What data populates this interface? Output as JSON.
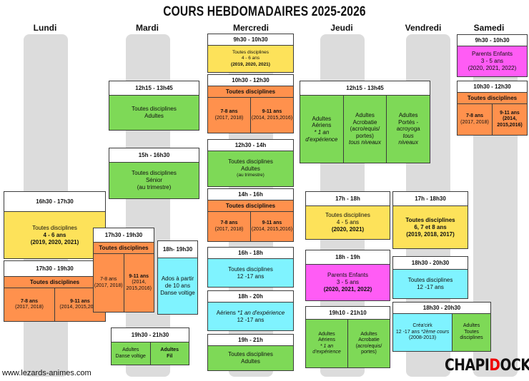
{
  "title": "COURS HEBDOMADAIRES 2025-2026",
  "days": [
    "Lundi",
    "Mardi",
    "Mercredi",
    "Jeudi",
    "Vendredi",
    "Samedi"
  ],
  "website": "www.lezards-animes.com",
  "logo": {
    "text_before": "CHAPI",
    "text_accent": "D",
    "text_after": "OCK"
  },
  "colors": {
    "yellow": "#fde25a",
    "green": "#7ed957",
    "orange": "#ff914d",
    "cyan": "#7ff3ff",
    "magenta": "#ff5cf5",
    "track": "#dcdcdc"
  },
  "lundi": {
    "c1": {
      "time": "16h30 - 17h30",
      "l1": "Toutes disciplines",
      "l2": "4 - 6 ans",
      "l3": "(2019, 2020, 2021)"
    },
    "c2": {
      "time": "17h30 - 19h30",
      "sub": "Toutes disciplines",
      "a1": "7-8 ans",
      "a2": "(2017, 2018)",
      "b1": "9-11 ans",
      "b2": "(2014, 2015,2016)"
    }
  },
  "mardi": {
    "c1": {
      "time": "12h15 - 13h45",
      "l1": "Toutes disciplines",
      "l2": "Adultes"
    },
    "c2": {
      "time": "15h - 16h30",
      "l1": "Toutes disciplines",
      "l2": "Sénior",
      "l3": "(au trimestre)"
    },
    "c3": {
      "time": "17h30 - 19h30",
      "sub": "Toutes disciplines",
      "a1": "7-8 ans",
      "a2": "(2017, 2018)",
      "b1": "9-11 ans",
      "b2": "(2014, 2015,2016)"
    },
    "c4": {
      "time": "18h- 19h30",
      "l1": "Ados à partir",
      "l2": "de 10 ans",
      "l3": "Danse voltige"
    },
    "c5": {
      "time": "19h30 - 21h30",
      "a1": "Adultes",
      "a2": "Danse voltige",
      "b1": "Adultes",
      "b2": "Fil"
    }
  },
  "mercredi": {
    "c1": {
      "time": "9h30 - 10h30",
      "l1": "Toutes disciplines",
      "l2": "4 - 6 ans",
      "l3": "(2019, 2020, 2021)"
    },
    "c2": {
      "time": "10h30 - 12h30",
      "sub": "Toutes disciplines",
      "a1": "7-8 ans",
      "a2": "(2017, 2018)",
      "b1": "9-11 ans",
      "b2": "(2014, 2015,2016)"
    },
    "c3": {
      "time": "12h30 - 14h",
      "l1": "Toutes disciplines",
      "l2": "Adultes",
      "l3": "(au trimestre)"
    },
    "c4": {
      "time": "14h - 16h",
      "sub": "Toutes disciplines",
      "a1": "7-8 ans",
      "a2": "(2017, 2018)",
      "b1": "9-11 ans",
      "b2": "(2014, 2015,2016)"
    },
    "c5": {
      "time": "16h - 18h",
      "l1": "Toutes disciplines",
      "l2": "12 -17 ans"
    },
    "c6": {
      "time": "18h - 20h",
      "l1a": "Aériens",
      "l1b": "*1 an d'expérience",
      "l2": "12 -17 ans"
    },
    "c7": {
      "time": "19h - 21h",
      "l1": "Toutes disciplines",
      "l2": "Adultes"
    }
  },
  "jeudi": {
    "c1": {
      "time": "12h15 - 13h45",
      "a1": "Adultes",
      "a2": "Aériens",
      "a3": "* 1 an",
      "a4": "d'expérience",
      "b1": "Adultes",
      "b2": "Acrobatie",
      "b3": "(acro/equis/",
      "b4": "portes)",
      "b5": "tous niveaux",
      "c1": "Adultes",
      "c2": "Portés -",
      "c3": "acroyoga",
      "c4": "tous",
      "c5": "niveaux"
    },
    "c2": {
      "time": "17h - 18h",
      "l1": "Toutes disciplines",
      "l2": "4 - 5 ans",
      "l3": "(2020, 2021)"
    },
    "c3": {
      "time": "18h - 19h",
      "l1": "Parents Enfants",
      "l2": "3 - 5 ans",
      "l3": "(2020, 2021, 2022)"
    },
    "c4": {
      "time": "19h10 - 21h10",
      "a1": "Adultes",
      "a2": "Aériens",
      "a3": "* 1 an",
      "a4": "d'expérience",
      "b1": "Adultes",
      "b2": "Acrobatie",
      "b3": "(acro/equis/",
      "b4": "portes)"
    }
  },
  "vendredi": {
    "c1": {
      "time": "17h - 18h30",
      "l1": "Toutes disciplines",
      "l2": "6, 7 et 8 ans",
      "l3": "(2019, 2018, 2017)"
    },
    "c2": {
      "time": "18h30 - 20h30",
      "l1": "Toutes disciplines",
      "l2": "12 -17 ans"
    },
    "c3": {
      "time": "18h30 - 20h30",
      "a1": "Créa'cirk",
      "a2": "12 -17 ans",
      "a3": "*2ème cours",
      "a4": "(2008-2013)",
      "b1": "Adultes",
      "b2": "Toutes disciplines"
    }
  },
  "samedi": {
    "c1": {
      "time": "9h30 - 10h30",
      "l1": "Parents Enfants",
      "l2": "3 - 5 ans",
      "l3": "(2020, 2021, 2022)"
    },
    "c2": {
      "time": "10h30 - 12h30",
      "sub": "Toutes disciplines",
      "a1": "7-8 ans",
      "a2": "(2017, 2018)",
      "b1": "9-11 ans",
      "b2": "(2014, 2015,2016)"
    }
  }
}
